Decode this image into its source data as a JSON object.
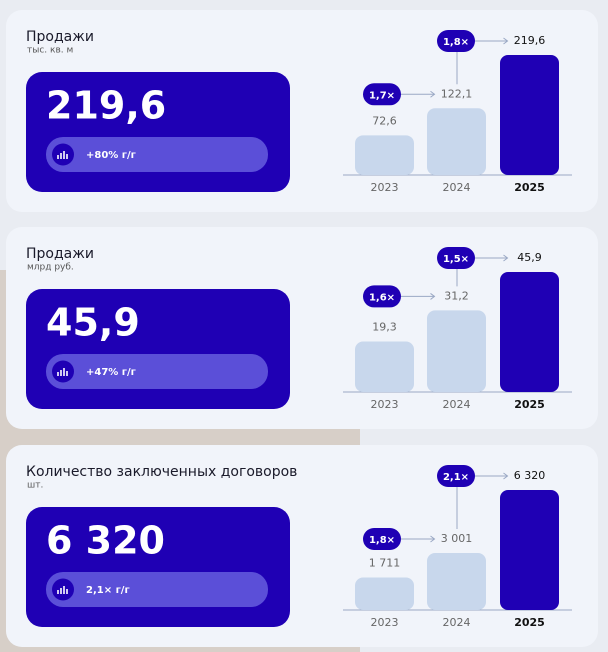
{
  "chart_data": [
    {
      "type": "bar",
      "title": "Продажи",
      "subtitle": "тыс. кв. м",
      "change": "+80% г/г",
      "categories": [
        "2023",
        "2024",
        "2025"
      ],
      "values": [
        72.6,
        122.1,
        219.6
      ],
      "value_labels": [
        "72,6",
        "122,1",
        "219,6"
      ],
      "annotations": [
        "1,7×",
        "1,8×"
      ],
      "colors": [
        "#c8d7ec",
        "#c8d7ec",
        "#1f00b4"
      ]
    },
    {
      "type": "bar",
      "title": "Продажи",
      "subtitle": "млрд руб.",
      "change": "+47% г/г",
      "categories": [
        "2023",
        "2024",
        "2025"
      ],
      "values": [
        19.3,
        31.2,
        45.9
      ],
      "value_labels": [
        "19,3",
        "31,2",
        "45,9"
      ],
      "annotations": [
        "1,6×",
        "1,5×"
      ],
      "colors": [
        "#c8d7ec",
        "#c8d7ec",
        "#1f00b4"
      ]
    },
    {
      "type": "bar",
      "title": "Количество заключенных договоров",
      "subtitle": "шт.",
      "change": "2,1× г/г",
      "categories": [
        "2023",
        "2024",
        "2025"
      ],
      "values": [
        1711,
        3001,
        6320
      ],
      "value_labels": [
        "1 711",
        "3 001",
        "6 320"
      ],
      "annotations": [
        "1,8×",
        "2,1×"
      ],
      "colors": [
        "#c8d7ec",
        "#c8d7ec",
        "#1f00b4"
      ]
    }
  ]
}
